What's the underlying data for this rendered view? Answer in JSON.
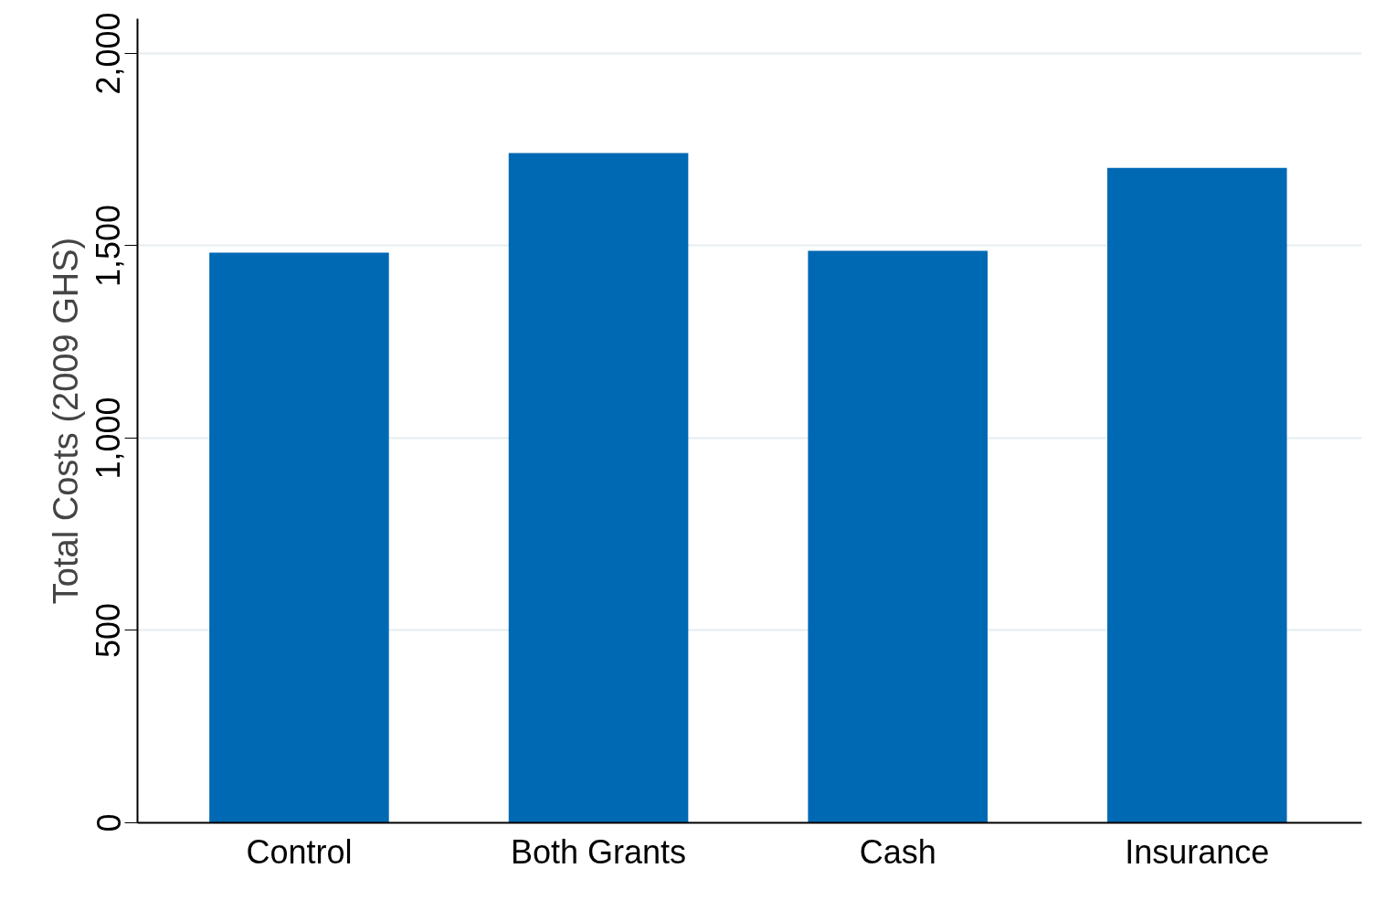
{
  "chart_data": {
    "type": "bar",
    "ylabel": "Total Costs (2009 GHS)",
    "categories": [
      "Control",
      "Both Grants",
      "Cash",
      "Insurance"
    ],
    "values": [
      1482,
      1741,
      1487,
      1702
    ],
    "color": "#0069b4",
    "ylim": [
      0,
      2090
    ],
    "yticks": [
      0,
      500,
      {
        "value": 1000,
        "label": "1,000"
      },
      {
        "value": 1500,
        "label": "1,500"
      },
      {
        "value": 2000,
        "label": "2,000"
      }
    ],
    "grid": "y"
  }
}
